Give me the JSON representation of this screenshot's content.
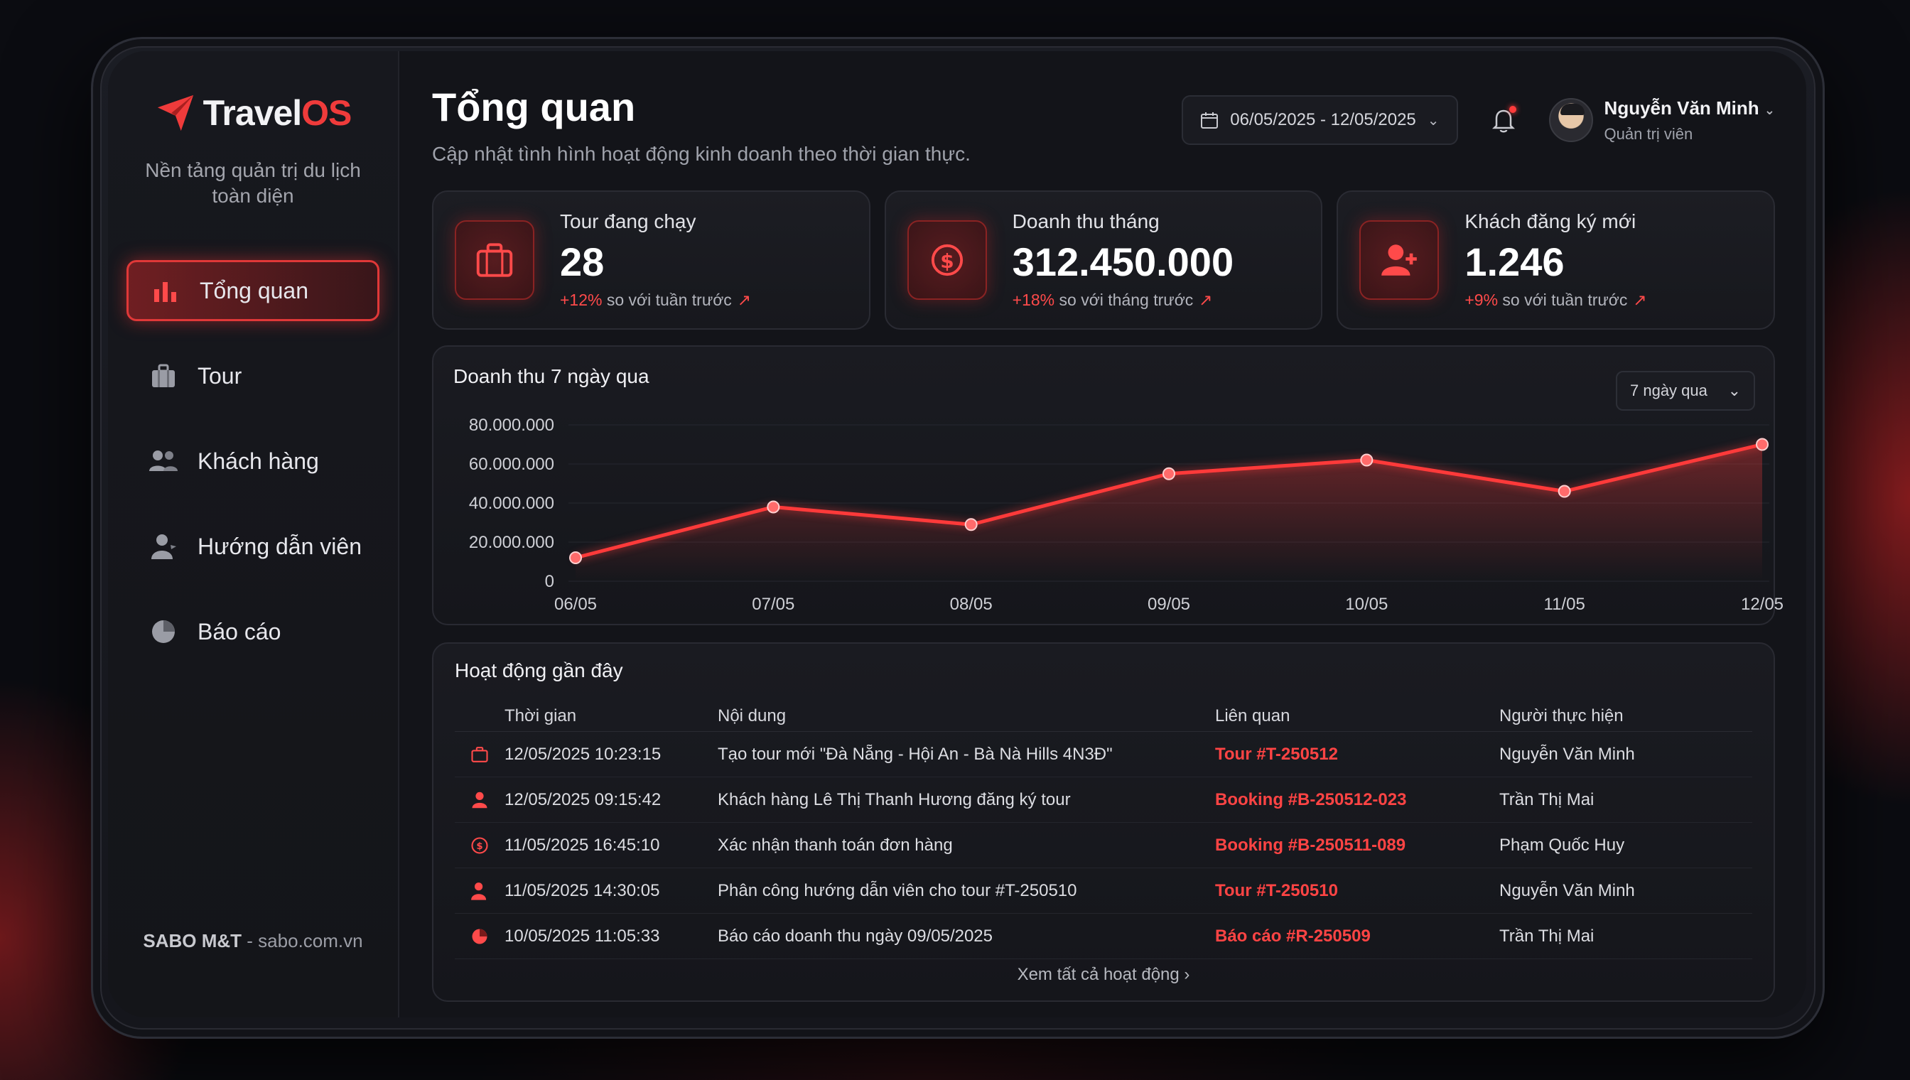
{
  "app": {
    "logo_part1": "Travel",
    "logo_part2": "OS",
    "tagline": "Nền tảng quản trị du lịch toàn diện",
    "footer_brand": "SABO M&T",
    "footer_site": " - sabo.com.vn"
  },
  "sidebar": {
    "items": [
      {
        "label": "Tổng quan",
        "icon": "bar-chart-icon",
        "active": true
      },
      {
        "label": "Tour",
        "icon": "briefcase-icon",
        "active": false
      },
      {
        "label": "Khách hàng",
        "icon": "users-icon",
        "active": false
      },
      {
        "label": "Hướng dẫn viên",
        "icon": "guide-icon",
        "active": false
      },
      {
        "label": "Báo cáo",
        "icon": "pie-chart-icon",
        "active": false
      }
    ]
  },
  "header": {
    "title": "Tổng quan",
    "subtitle": "Cập nhật tình hình hoạt động kinh doanh theo thời gian thực.",
    "date_range": "06/05/2025 - 12/05/2025",
    "user_name": "Nguyễn Văn Minh",
    "user_role": "Quản trị viên"
  },
  "kpis": [
    {
      "label": "Tour đang chạy",
      "value": "28",
      "delta": "+12%",
      "delta_text": " so với tuần trước",
      "icon": "briefcase-icon"
    },
    {
      "label": "Doanh thu tháng",
      "value": "312.450.000",
      "delta": "+18%",
      "delta_text": " so với tháng trước",
      "icon": "money-icon"
    },
    {
      "label": "Khách đăng ký mới",
      "value": "1.246",
      "delta": "+9%",
      "delta_text": " so với tuần trước",
      "icon": "add-user-icon"
    }
  ],
  "chart_section": {
    "title": "Doanh thu 7 ngày qua",
    "range_select": "7 ngày qua"
  },
  "chart_data": {
    "type": "area",
    "categories": [
      "06/05",
      "07/05",
      "08/05",
      "09/05",
      "10/05",
      "11/05",
      "12/05"
    ],
    "values": [
      12000000,
      38000000,
      29000000,
      55000000,
      62000000,
      46000000,
      70000000
    ],
    "ylim": [
      0,
      80000000
    ],
    "yticks": [
      "0",
      "20.000.000",
      "40.000.000",
      "60.000.000",
      "80.000.000"
    ],
    "ytick_values": [
      0,
      20000000,
      40000000,
      60000000,
      80000000
    ],
    "grid": true,
    "color": "#ff3a3a"
  },
  "activity": {
    "title": "Hoạt động gần đây",
    "columns": [
      "Thời gian",
      "Nội dung",
      "Liên quan",
      "Người thực hiện"
    ],
    "rows": [
      {
        "icon": "briefcase-icon",
        "time": "12/05/2025 10:23:15",
        "content": "Tạo tour mới \"Đà Nẵng - Hội An - Bà Nà Hills 4N3Đ\"",
        "related": "Tour #T-250512",
        "actor": "Nguyễn Văn Minh"
      },
      {
        "icon": "user-icon",
        "time": "12/05/2025 09:15:42",
        "content": "Khách hàng Lê Thị Thanh Hương đăng ký tour",
        "related": "Booking #B-250512-023",
        "actor": "Trần Thị Mai"
      },
      {
        "icon": "dollar-icon",
        "time": "11/05/2025 16:45:10",
        "content": "Xác nhận thanh toán đơn hàng",
        "related": "Booking #B-250511-089",
        "actor": "Phạm Quốc Huy"
      },
      {
        "icon": "guide-icon",
        "time": "11/05/2025 14:30:05",
        "content": "Phân công hướng dẫn viên cho tour #T-250510",
        "related": "Tour #T-250510",
        "actor": "Nguyễn Văn Minh"
      },
      {
        "icon": "pie-chart-icon",
        "time": "10/05/2025 11:05:33",
        "content": "Báo cáo doanh thu ngày 09/05/2025",
        "related": "Báo cáo #R-250509",
        "actor": "Trần Thị Mai"
      }
    ],
    "see_all": "Xem tất cả hoạt động"
  },
  "colors": {
    "accent": "#ef3b3b",
    "background": "#131419"
  }
}
